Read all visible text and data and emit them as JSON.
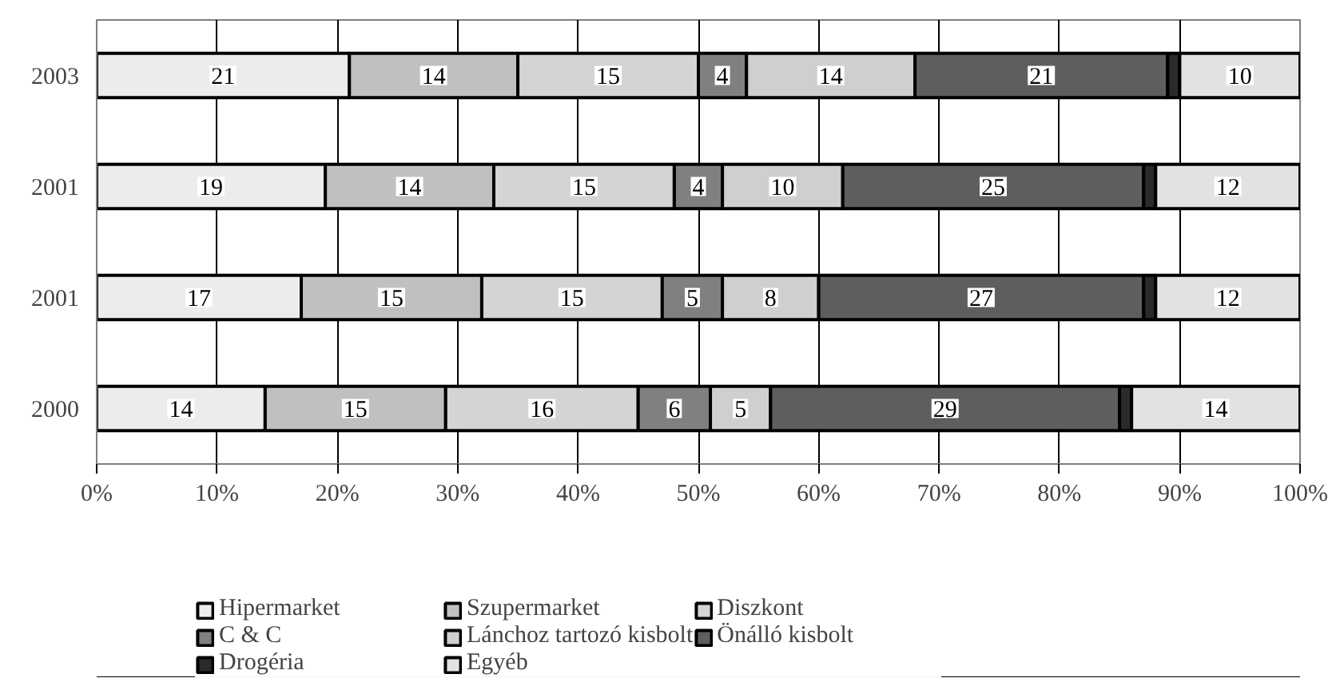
{
  "chart_data": {
    "type": "bar",
    "orientation": "horizontal",
    "stacked": true,
    "categories": [
      "2003",
      "2001",
      "2001",
      "2000"
    ],
    "series": [
      {
        "name": "Hipermarket",
        "color": "#ececec",
        "values": [
          21,
          19,
          17,
          14
        ],
        "value_labels": [
          "21",
          "19",
          "17",
          "14"
        ]
      },
      {
        "name": "Szupermarket",
        "color": "#c0c0c0",
        "values": [
          14,
          14,
          15,
          15
        ],
        "value_labels": [
          "14",
          "14",
          "15",
          "15"
        ]
      },
      {
        "name": "Diszkont",
        "color": "#d4d4d4",
        "values": [
          15,
          15,
          15,
          16
        ],
        "value_labels": [
          "15",
          "15",
          "15",
          "16"
        ]
      },
      {
        "name": "C & C",
        "color": "#808080",
        "values": [
          4,
          4,
          5,
          6
        ],
        "value_labels": [
          "4",
          "4",
          "5",
          "6"
        ]
      },
      {
        "name": "Lánchoz tartozó kisbolt",
        "color": "#cfcfcf",
        "values": [
          14,
          10,
          8,
          5
        ],
        "value_labels": [
          "14",
          "10",
          "8",
          "5"
        ]
      },
      {
        "name": "Önálló kisbolt",
        "color": "#5e5e5e",
        "values": [
          21,
          25,
          27,
          29
        ],
        "value_labels": [
          "21",
          "25",
          "27",
          "29"
        ]
      },
      {
        "name": "Drogéria",
        "color": "#2a2a2a",
        "values": [
          1,
          1,
          1,
          1
        ],
        "value_labels": [
          null,
          null,
          null,
          null
        ]
      },
      {
        "name": "Egyéb",
        "color": "#e2e2e2",
        "values": [
          10,
          12,
          12,
          14
        ],
        "value_labels": [
          "10",
          "12",
          "12",
          "14"
        ]
      }
    ],
    "xlim": [
      0,
      100
    ],
    "xticks": [
      {
        "value": 0,
        "label": "0%"
      },
      {
        "value": 10,
        "label": "10%"
      },
      {
        "value": 20,
        "label": "20%"
      },
      {
        "value": 30,
        "label": "30%"
      },
      {
        "value": 40,
        "label": "40%"
      },
      {
        "value": 50,
        "label": "50%"
      },
      {
        "value": 60,
        "label": "60%"
      },
      {
        "value": 70,
        "label": "70%"
      },
      {
        "value": 80,
        "label": "80%"
      },
      {
        "value": 90,
        "label": "90%"
      },
      {
        "value": 100,
        "label": "100%"
      }
    ],
    "grid": "x",
    "legend": "bottom"
  }
}
